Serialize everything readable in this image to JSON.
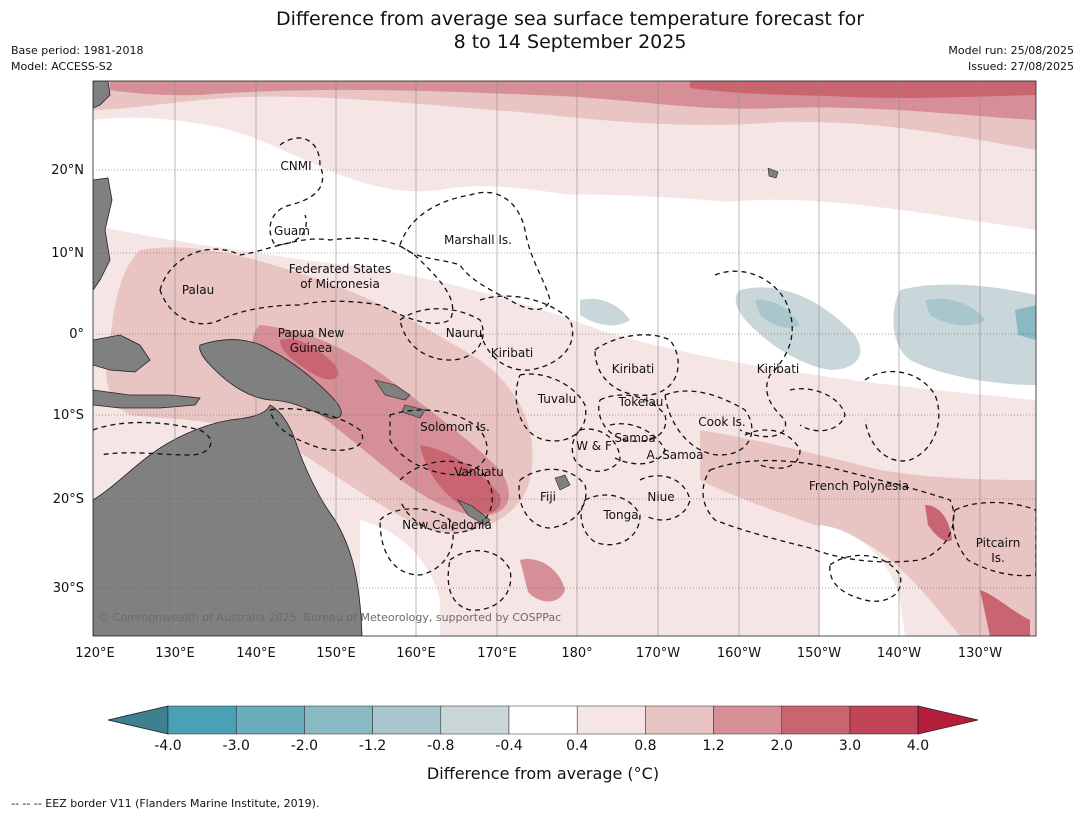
{
  "title": {
    "line1": "Difference from average sea surface temperature forecast for",
    "line2": "8 to 14 September 2025"
  },
  "meta_left": {
    "base_period": "Base period: 1981-2018",
    "model": "Model: ACCESS-S2"
  },
  "meta_right": {
    "model_run": "Model run: 25/08/2025",
    "issued": "Issued: 27/08/2025"
  },
  "map": {
    "lon_labels": [
      "120°E",
      "130°E",
      "140°E",
      "150°E",
      "160°E",
      "170°E",
      "180°",
      "170°W",
      "160°W",
      "150°W",
      "140°W",
      "130°W"
    ],
    "lat_labels": [
      "20°N",
      "10°N",
      "0°",
      "10°S",
      "20°S",
      "30°S"
    ],
    "regions": [
      {
        "name": "CNMI"
      },
      {
        "name": "Guam"
      },
      {
        "name": "Marshall Is."
      },
      {
        "name": "Federated States"
      },
      {
        "name": "of Micronesia"
      },
      {
        "name": "Palau"
      },
      {
        "name": "Papua New"
      },
      {
        "name": "Guinea"
      },
      {
        "name": "Nauru"
      },
      {
        "name": "Kiribati"
      },
      {
        "name": "Kiribati"
      },
      {
        "name": "Kiribati"
      },
      {
        "name": "Tuvalu"
      },
      {
        "name": "Tokelau"
      },
      {
        "name": "Cook Is."
      },
      {
        "name": "Solomon Is."
      },
      {
        "name": "Samoa"
      },
      {
        "name": "W & F"
      },
      {
        "name": "A. Samoa"
      },
      {
        "name": "Vanuatu"
      },
      {
        "name": "Fiji"
      },
      {
        "name": "Niue"
      },
      {
        "name": "French Polynesia"
      },
      {
        "name": "Tonga"
      },
      {
        "name": "New Caledonia"
      },
      {
        "name": "Pitcairn"
      },
      {
        "name": "Is."
      }
    ],
    "copyright": "© Commonwealth of Australia 2025, Bureau of Meteorology, supported by COSPPac",
    "land_color": "#808080"
  },
  "colorbar": {
    "colors": [
      "#4aa0b5",
      "#6aaebe",
      "#89b9c3",
      "#a8c6cb",
      "#c9d6da",
      "#ffffff",
      "#f5e6e5",
      "#e8c4c2",
      "#d68f97",
      "#c86570",
      "#c04357"
    ],
    "extend_low_color": "#3e808f",
    "extend_high_color": "#b51f3c",
    "tick_labels": [
      "-4.0",
      "-3.0",
      "-2.0",
      "-1.2",
      "-0.8",
      "-0.4",
      "0.4",
      "0.8",
      "1.2",
      "2.0",
      "3.0",
      "4.0"
    ],
    "title": "Difference from average (°C)"
  },
  "footnote": "--  --  -- EEZ border V11 (Flanders Marine Institute, 2019)."
}
